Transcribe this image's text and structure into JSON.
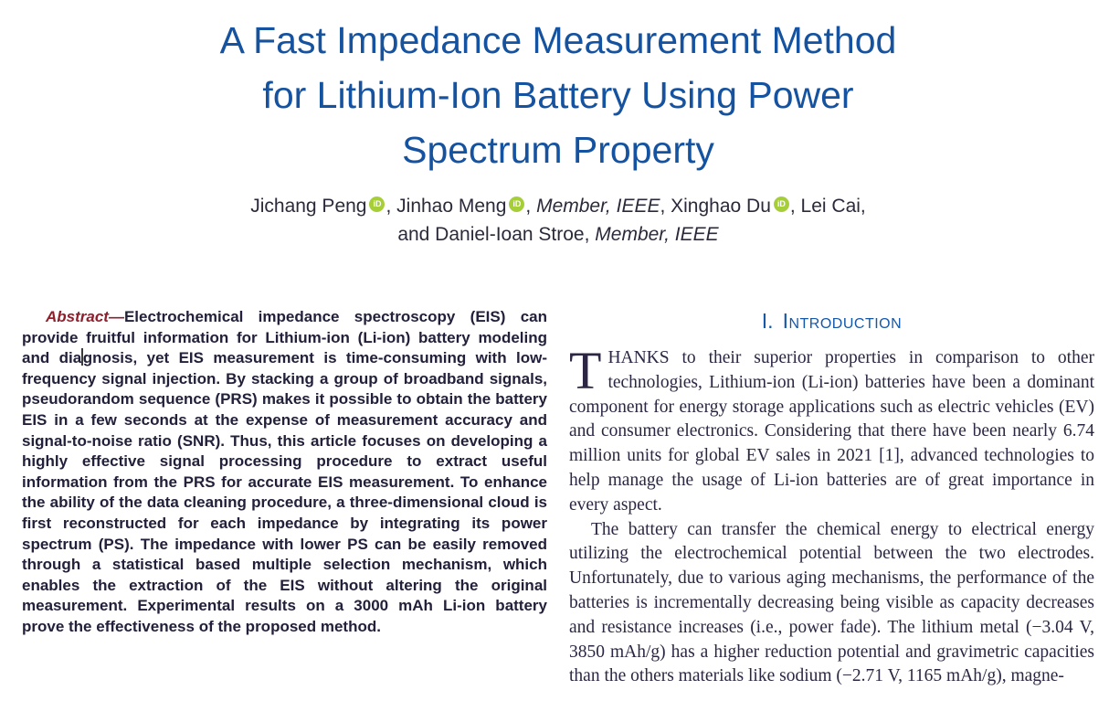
{
  "title": {
    "line1": "A Fast Impedance Measurement Method",
    "line2": "for Lithium-Ion Battery Using Power",
    "line3": "Spectrum Property"
  },
  "authors": {
    "line1": [
      {
        "text": "Jichang Peng"
      },
      {
        "text": ", Jinhao Meng"
      },
      {
        "text": ", "
      },
      {
        "text": "Member, IEEE",
        "italic": true
      },
      {
        "text": ", Xinghao Du"
      },
      {
        "text": ", Lei Cai,"
      }
    ],
    "line2": [
      {
        "text": "and Daniel-Ioan Stroe, "
      },
      {
        "text": "Member, IEEE",
        "italic": true
      }
    ]
  },
  "icons": {
    "orcid_label": "iD"
  },
  "colors": {
    "title_blue": "#15529f",
    "heading_blue": "#1558a8",
    "abstract_red": "#8e1f2c",
    "orcid_green": "#a6ce39"
  },
  "abstract": {
    "lead": "Abstract",
    "dash": "—",
    "body_part1": "Electrochemical impedance spectroscopy (EIS) can provide fruitful information for Lithium-ion (Li-ion) battery modeling and dia",
    "body_part2": "gnosis, yet EIS measurement is time-consuming with low-frequency signal injection. By stacking a group of broadband signals, pseudorandom sequence (PRS) makes it possible to obtain the battery EIS in a few seconds at the expense of measurement accuracy and signal-to-noise ratio (SNR). Thus, this article focuses on developing a highly effective signal processing procedure to extract useful information from the PRS for accurate EIS measurement. To enhance the ability of the data cleaning procedure, a three-dimensional cloud is first reconstructed for each impedance by integrating its power spectrum (PS). The impedance with lower PS can be easily removed through a statistical based multiple selection mechanism, which enables the extraction of the EIS without altering the original measurement. Experimental results on a 3000 mAh Li-ion battery prove the effectiveness of the proposed method."
  },
  "introduction": {
    "heading_number": "I.",
    "heading_title": "Introduction",
    "p1_dropcap": "T",
    "p1_rest": "HANKS to their superior properties in comparison to other technologies, Lithium-ion (Li-ion) batteries have been a dominant component for energy storage applications such as electric vehicles (EV) and consumer electronics. Considering that there have been nearly 6.74 million units for global EV sales in 2021 [1], advanced technologies to help manage the usage of Li-ion batteries are of great importance in every aspect.",
    "p2": "The battery can transfer the chemical energy to electrical energy utilizing the electrochemical potential between the two electrodes. Unfortunately, due to various aging mechanisms, the performance of the batteries is incrementally decreasing being visible as capacity decreases and resistance increases (i.e., power fade). The lithium metal (−3.04 V, 3850 mAh/g) has a higher reduction potential and gravimetric capacities than the others materials like sodium (−2.71 V, 1165 mAh/g), magne-"
  }
}
